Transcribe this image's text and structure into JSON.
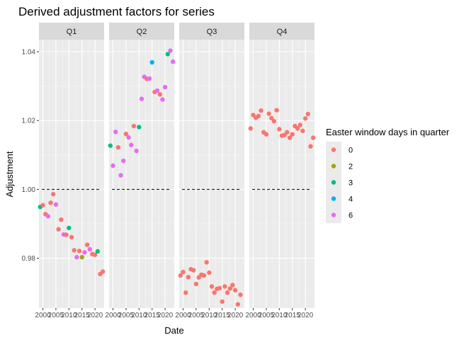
{
  "chart_data": {
    "type": "scatter",
    "title": "Derived adjustment factors for series",
    "xlabel": "Date",
    "ylabel": "Adjustment",
    "facets": [
      "Q1",
      "Q2",
      "Q3",
      "Q4"
    ],
    "xlim": [
      1998.5,
      2023.5
    ],
    "ylim": [
      0.9655,
      1.0435
    ],
    "x_ticks": [
      2000,
      2005,
      2010,
      2015,
      2020
    ],
    "x_tick_labels": [
      "2000",
      "2005",
      "2010",
      "2015",
      "2020"
    ],
    "y_ticks": [
      0.98,
      1.0,
      1.02,
      1.04
    ],
    "y_tick_labels": [
      "0.98",
      "1.00",
      "1.02",
      "1.04"
    ],
    "reference_line": 1.0,
    "grid": true,
    "legend": {
      "title": "Easter window days in quarter",
      "placement": "right",
      "entries": [
        {
          "label": "0",
          "color": "#F8766D"
        },
        {
          "label": "2",
          "color": "#A3A500"
        },
        {
          "label": "3",
          "color": "#00BF7D"
        },
        {
          "label": "4",
          "color": "#00B0F6"
        },
        {
          "label": "6",
          "color": "#E76BF3"
        }
      ]
    },
    "points": {
      "Q1": [
        {
          "x": 1999,
          "y": 0.9949,
          "group": "3"
        },
        {
          "x": 2000,
          "y": 0.9954,
          "group": "0"
        },
        {
          "x": 2001,
          "y": 0.9928,
          "group": "0"
        },
        {
          "x": 2002,
          "y": 0.9922,
          "group": "6"
        },
        {
          "x": 2003,
          "y": 0.9961,
          "group": "0"
        },
        {
          "x": 2004,
          "y": 0.9986,
          "group": "0"
        },
        {
          "x": 2005,
          "y": 0.9956,
          "group": "6"
        },
        {
          "x": 2006,
          "y": 0.9884,
          "group": "0"
        },
        {
          "x": 2007,
          "y": 0.9912,
          "group": "0"
        },
        {
          "x": 2008,
          "y": 0.9869,
          "group": "6"
        },
        {
          "x": 2009,
          "y": 0.9868,
          "group": "0"
        },
        {
          "x": 2010,
          "y": 0.9888,
          "group": "3"
        },
        {
          "x": 2011,
          "y": 0.9861,
          "group": "0"
        },
        {
          "x": 2012,
          "y": 0.9823,
          "group": "0"
        },
        {
          "x": 2013,
          "y": 0.9803,
          "group": "6"
        },
        {
          "x": 2014,
          "y": 0.9821,
          "group": "0"
        },
        {
          "x": 2015,
          "y": 0.9803,
          "group": "2"
        },
        {
          "x": 2016,
          "y": 0.9817,
          "group": "6"
        },
        {
          "x": 2017,
          "y": 0.9839,
          "group": "0"
        },
        {
          "x": 2018,
          "y": 0.9826,
          "group": "6"
        },
        {
          "x": 2019,
          "y": 0.9812,
          "group": "0"
        },
        {
          "x": 2020,
          "y": 0.981,
          "group": "0"
        },
        {
          "x": 2021,
          "y": 0.982,
          "group": "3"
        },
        {
          "x": 2022,
          "y": 0.9754,
          "group": "0"
        },
        {
          "x": 2023,
          "y": 0.9761,
          "group": "0"
        }
      ],
      "Q2": [
        {
          "x": 1999,
          "y": 1.0127,
          "group": "3"
        },
        {
          "x": 2000,
          "y": 1.0069,
          "group": "6"
        },
        {
          "x": 2001,
          "y": 1.0167,
          "group": "6"
        },
        {
          "x": 2002,
          "y": 1.0122,
          "group": "0"
        },
        {
          "x": 2003,
          "y": 1.0041,
          "group": "6"
        },
        {
          "x": 2004,
          "y": 1.0083,
          "group": "6"
        },
        {
          "x": 2005,
          "y": 1.0161,
          "group": "0"
        },
        {
          "x": 2006,
          "y": 1.0151,
          "group": "6"
        },
        {
          "x": 2007,
          "y": 1.0129,
          "group": "6"
        },
        {
          "x": 2008,
          "y": 1.0184,
          "group": "0"
        },
        {
          "x": 2009,
          "y": 1.0112,
          "group": "6"
        },
        {
          "x": 2010,
          "y": 1.0181,
          "group": "3"
        },
        {
          "x": 2011,
          "y": 1.0263,
          "group": "6"
        },
        {
          "x": 2012,
          "y": 1.0327,
          "group": "6"
        },
        {
          "x": 2013,
          "y": 1.0321,
          "group": "0"
        },
        {
          "x": 2014,
          "y": 1.0322,
          "group": "6"
        },
        {
          "x": 2015,
          "y": 1.0369,
          "group": "4"
        },
        {
          "x": 2016,
          "y": 1.0283,
          "group": "0"
        },
        {
          "x": 2017,
          "y": 1.0287,
          "group": "6"
        },
        {
          "x": 2018,
          "y": 1.0276,
          "group": "0"
        },
        {
          "x": 2019,
          "y": 1.0261,
          "group": "6"
        },
        {
          "x": 2020,
          "y": 1.0297,
          "group": "6"
        },
        {
          "x": 2021,
          "y": 1.0393,
          "group": "3"
        },
        {
          "x": 2022,
          "y": 1.0403,
          "group": "6"
        },
        {
          "x": 2023,
          "y": 1.0371,
          "group": "6"
        }
      ],
      "Q3": [
        {
          "x": 1999,
          "y": 0.975,
          "group": "0"
        },
        {
          "x": 2000,
          "y": 0.976,
          "group": "0"
        },
        {
          "x": 2001,
          "y": 0.97,
          "group": "0"
        },
        {
          "x": 2002,
          "y": 0.9745,
          "group": "0"
        },
        {
          "x": 2003,
          "y": 0.9768,
          "group": "0"
        },
        {
          "x": 2004,
          "y": 0.9765,
          "group": "0"
        },
        {
          "x": 2005,
          "y": 0.9725,
          "group": "0"
        },
        {
          "x": 2006,
          "y": 0.9744,
          "group": "0"
        },
        {
          "x": 2007,
          "y": 0.9752,
          "group": "0"
        },
        {
          "x": 2008,
          "y": 0.975,
          "group": "0"
        },
        {
          "x": 2009,
          "y": 0.9788,
          "group": "0"
        },
        {
          "x": 2010,
          "y": 0.9758,
          "group": "0"
        },
        {
          "x": 2011,
          "y": 0.9718,
          "group": "0"
        },
        {
          "x": 2012,
          "y": 0.97,
          "group": "0"
        },
        {
          "x": 2013,
          "y": 0.9711,
          "group": "0"
        },
        {
          "x": 2014,
          "y": 0.9713,
          "group": "0"
        },
        {
          "x": 2015,
          "y": 0.9674,
          "group": "0"
        },
        {
          "x": 2016,
          "y": 0.9718,
          "group": "0"
        },
        {
          "x": 2017,
          "y": 0.97,
          "group": "0"
        },
        {
          "x": 2018,
          "y": 0.9712,
          "group": "0"
        },
        {
          "x": 2019,
          "y": 0.9722,
          "group": "0"
        },
        {
          "x": 2020,
          "y": 0.9707,
          "group": "0"
        },
        {
          "x": 2021,
          "y": 0.9666,
          "group": "0"
        },
        {
          "x": 2022,
          "y": 0.9694,
          "group": "0"
        }
      ],
      "Q4": [
        {
          "x": 1999,
          "y": 1.0177,
          "group": "0"
        },
        {
          "x": 2000,
          "y": 1.0216,
          "group": "0"
        },
        {
          "x": 2001,
          "y": 1.0208,
          "group": "0"
        },
        {
          "x": 2002,
          "y": 1.0213,
          "group": "0"
        },
        {
          "x": 2003,
          "y": 1.0229,
          "group": "0"
        },
        {
          "x": 2004,
          "y": 1.0166,
          "group": "0"
        },
        {
          "x": 2005,
          "y": 1.016,
          "group": "0"
        },
        {
          "x": 2006,
          "y": 1.022,
          "group": "0"
        },
        {
          "x": 2007,
          "y": 1.0207,
          "group": "0"
        },
        {
          "x": 2008,
          "y": 1.0198,
          "group": "0"
        },
        {
          "x": 2009,
          "y": 1.023,
          "group": "0"
        },
        {
          "x": 2010,
          "y": 1.0175,
          "group": "0"
        },
        {
          "x": 2011,
          "y": 1.0156,
          "group": "0"
        },
        {
          "x": 2012,
          "y": 1.0158,
          "group": "0"
        },
        {
          "x": 2013,
          "y": 1.0166,
          "group": "0"
        },
        {
          "x": 2014,
          "y": 1.015,
          "group": "0"
        },
        {
          "x": 2015,
          "y": 1.016,
          "group": "0"
        },
        {
          "x": 2016,
          "y": 1.0184,
          "group": "0"
        },
        {
          "x": 2017,
          "y": 1.0177,
          "group": "0"
        },
        {
          "x": 2018,
          "y": 1.0187,
          "group": "0"
        },
        {
          "x": 2019,
          "y": 1.017,
          "group": "0"
        },
        {
          "x": 2020,
          "y": 1.0206,
          "group": "0"
        },
        {
          "x": 2021,
          "y": 1.0219,
          "group": "0"
        },
        {
          "x": 2022,
          "y": 1.0125,
          "group": "0"
        },
        {
          "x": 2023,
          "y": 1.015,
          "group": "0"
        }
      ]
    }
  }
}
